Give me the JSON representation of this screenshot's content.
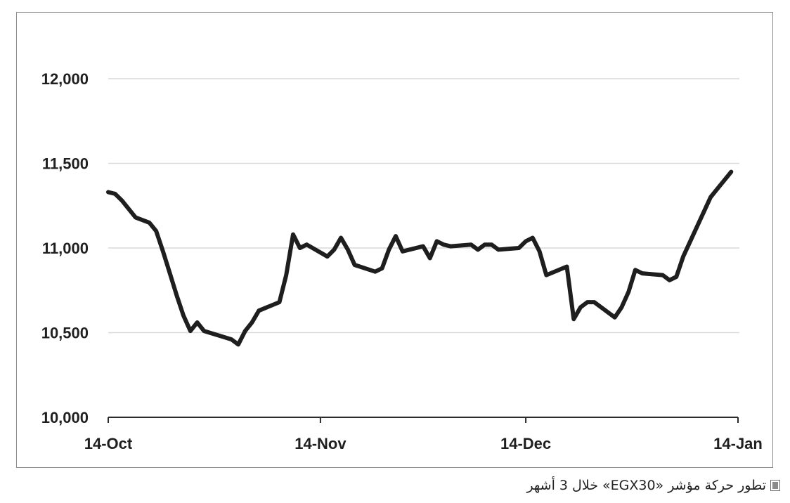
{
  "chart_data": {
    "type": "line",
    "title": "",
    "xlabel": "",
    "ylabel": "",
    "ylim": [
      10000,
      12000
    ],
    "y_ticks": [
      10000,
      10500,
      11000,
      11500,
      12000
    ],
    "y_tick_labels": [
      "10,000",
      "10,500",
      "11,000",
      "11,500",
      "12,000"
    ],
    "x_tick_labels": [
      "14-Oct",
      "14-Nov",
      "14-Dec",
      "14-Jan"
    ],
    "x_tick_dates": [
      "2014-10-14",
      "2014-11-14",
      "2014-12-14",
      "2015-01-14"
    ],
    "grid": "horizontal",
    "line_color": "#1e1e1e",
    "series": [
      {
        "name": "",
        "points": [
          [
            "2014-10-14",
            11330
          ],
          [
            "2014-10-15",
            11320
          ],
          [
            "2014-10-16",
            11280
          ],
          [
            "2014-10-18",
            11180
          ],
          [
            "2014-10-20",
            11150
          ],
          [
            "2014-10-21",
            11100
          ],
          [
            "2014-10-22",
            10980
          ],
          [
            "2014-10-23",
            10850
          ],
          [
            "2014-10-24",
            10720
          ],
          [
            "2014-10-25",
            10600
          ],
          [
            "2014-10-26",
            10510
          ],
          [
            "2014-10-27",
            10560
          ],
          [
            "2014-10-28",
            10510
          ],
          [
            "2014-11-01",
            10460
          ],
          [
            "2014-11-02",
            10430
          ],
          [
            "2014-11-03",
            10510
          ],
          [
            "2014-11-04",
            10560
          ],
          [
            "2014-11-05",
            10630
          ],
          [
            "2014-11-08",
            10680
          ],
          [
            "2014-11-09",
            10840
          ],
          [
            "2014-11-10",
            11080
          ],
          [
            "2014-11-11",
            11000
          ],
          [
            "2014-11-12",
            11020
          ],
          [
            "2014-11-15",
            10950
          ],
          [
            "2014-11-16",
            10990
          ],
          [
            "2014-11-17",
            11060
          ],
          [
            "2014-11-18",
            10990
          ],
          [
            "2014-11-19",
            10900
          ],
          [
            "2014-11-22",
            10860
          ],
          [
            "2014-11-23",
            10880
          ],
          [
            "2014-11-24",
            10990
          ],
          [
            "2014-11-25",
            11070
          ],
          [
            "2014-11-26",
            10980
          ],
          [
            "2014-11-29",
            11010
          ],
          [
            "2014-11-30",
            10940
          ],
          [
            "2014-12-01",
            11040
          ],
          [
            "2014-12-02",
            11020
          ],
          [
            "2014-12-03",
            11010
          ],
          [
            "2014-12-06",
            11020
          ],
          [
            "2014-12-07",
            10990
          ],
          [
            "2014-12-08",
            11020
          ],
          [
            "2014-12-09",
            11020
          ],
          [
            "2014-12-10",
            10990
          ],
          [
            "2014-12-13",
            11000
          ],
          [
            "2014-12-14",
            11040
          ],
          [
            "2014-12-15",
            11060
          ],
          [
            "2014-12-16",
            10980
          ],
          [
            "2014-12-17",
            10840
          ],
          [
            "2014-12-20",
            10890
          ],
          [
            "2014-12-21",
            10580
          ],
          [
            "2014-12-22",
            10650
          ],
          [
            "2014-12-23",
            10680
          ],
          [
            "2014-12-24",
            10680
          ],
          [
            "2014-12-27",
            10590
          ],
          [
            "2014-12-28",
            10650
          ],
          [
            "2014-12-29",
            10740
          ],
          [
            "2014-12-30",
            10870
          ],
          [
            "2014-12-31",
            10850
          ],
          [
            "2015-01-03",
            10840
          ],
          [
            "2015-01-04",
            10810
          ],
          [
            "2015-01-05",
            10830
          ],
          [
            "2015-01-06",
            10950
          ],
          [
            "2015-01-10",
            11300
          ],
          [
            "2015-01-13",
            11450
          ]
        ]
      }
    ]
  },
  "caption": {
    "text": "تطور حركة مؤشر «EGX30» خلال 3 أشهر",
    "icon": "document-icon"
  }
}
